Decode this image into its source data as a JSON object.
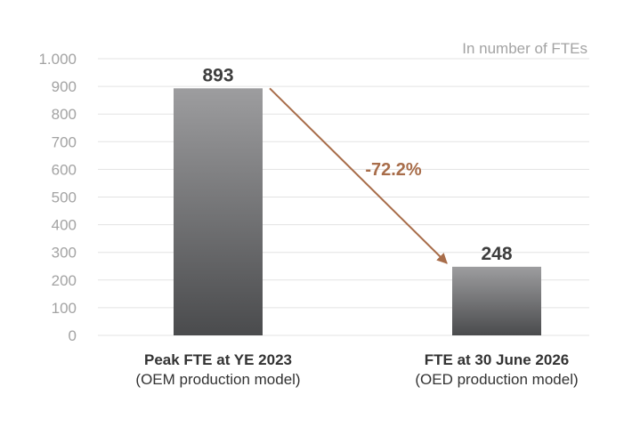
{
  "chart_data": {
    "type": "bar",
    "unit_note": "In number of FTEs",
    "categories": [
      {
        "line1": "Peak FTE at YE 2023",
        "line2": "(OEM production model)"
      },
      {
        "line1": "FTE at 30 June 2026",
        "line2": "(OED production model)"
      }
    ],
    "values": [
      893,
      248
    ],
    "value_labels": [
      "893",
      "248"
    ],
    "ylim": [
      0,
      1000
    ],
    "yticks": [
      0,
      100,
      200,
      300,
      400,
      500,
      600,
      700,
      800,
      900,
      1000
    ],
    "ytick_labels": [
      "0",
      "100",
      "200",
      "300",
      "400",
      "500",
      "600",
      "700",
      "800",
      "900",
      "1.000"
    ],
    "grid": true,
    "change_label": "-72.2%",
    "colors": {
      "bar_top": "#9d9d9f",
      "bar_bottom": "#4a4b4d",
      "arrow": "#a86d4a",
      "grid": "#e3e3e3",
      "tick": "#a3a3a3"
    }
  }
}
